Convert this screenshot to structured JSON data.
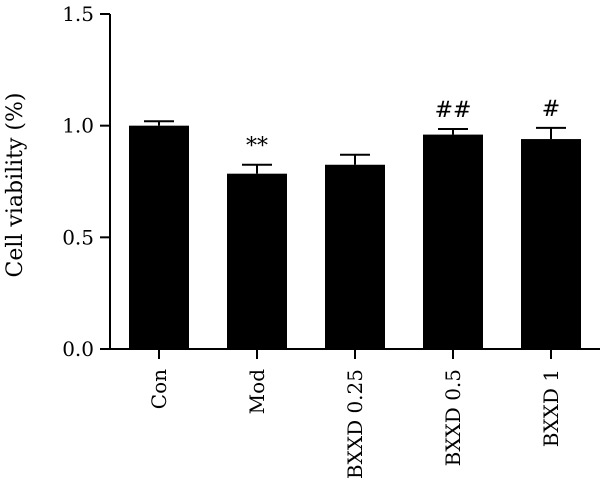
{
  "chart_data": {
    "type": "bar",
    "title": "",
    "xlabel": "",
    "ylabel": "Cell viability (%)",
    "ylim": [
      0,
      1.5
    ],
    "yticks": [
      "0.0",
      "0.5",
      "1.0",
      "1.5"
    ],
    "yticks_values": [
      0,
      0.5,
      1.0,
      1.5
    ],
    "categories": [
      "Con",
      "Mod",
      "BXXD 0.25",
      "BXXD 0.5",
      "BXXD 1"
    ],
    "values": [
      1.0,
      0.785,
      0.825,
      0.96,
      0.94
    ],
    "errors": [
      0.02,
      0.04,
      0.045,
      0.025,
      0.05
    ],
    "annotations": [
      "",
      "**",
      "",
      "##",
      "#"
    ],
    "bar_color": "#000000",
    "grid": false,
    "legend": "none"
  }
}
